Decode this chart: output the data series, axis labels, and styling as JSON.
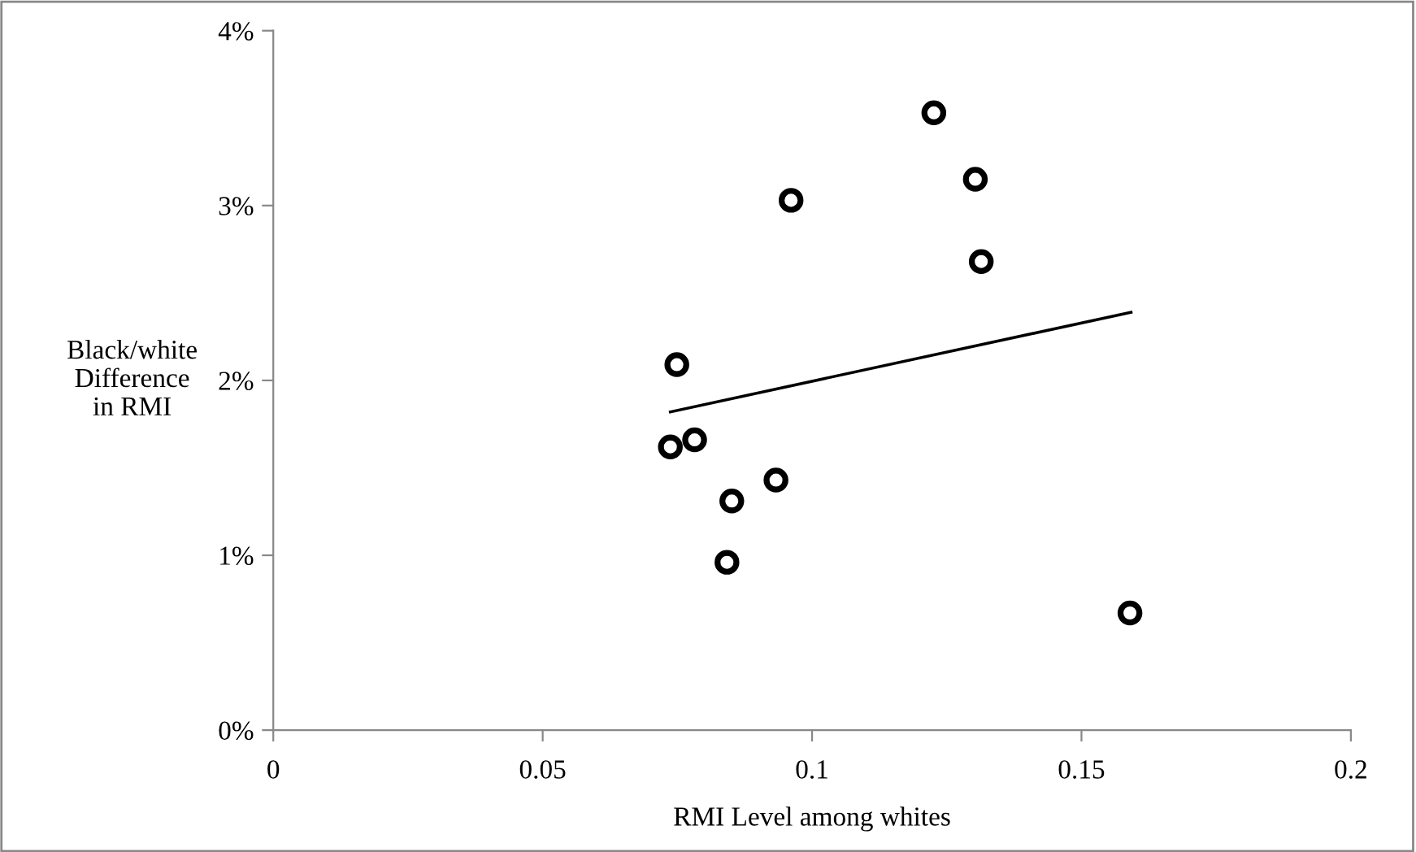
{
  "chart_data": {
    "type": "scatter",
    "xlabel": "RMI Level among whites",
    "ylabel": "Black/white\nDifference\nin RMI",
    "xlim": [
      0,
      0.2
    ],
    "xticks": [
      0,
      0.05,
      0.1,
      0.15,
      0.2
    ],
    "ylim": [
      0,
      4
    ],
    "yticks": [
      {
        "value": 0,
        "label": "0%"
      },
      {
        "value": 1,
        "label": "1%"
      },
      {
        "value": 2,
        "label": "2%"
      },
      {
        "value": 3,
        "label": "3%"
      },
      {
        "value": 4,
        "label": "4%"
      }
    ],
    "grid": false,
    "legend": false,
    "series": [
      {
        "color": "#000000",
        "marker": "circle",
        "x": [
          0.1226,
          0.1303,
          0.0961,
          0.1314,
          0.0749,
          0.0737,
          0.0782,
          0.0933,
          0.0851,
          0.0842,
          0.159
        ],
        "values": [
          3.53,
          3.15,
          3.03,
          2.68,
          2.09,
          1.62,
          1.66,
          1.43,
          1.31,
          0.96,
          0.67
        ]
      },
      {
        "type": "line",
        "marker": "none",
        "color": "#000000",
        "x": [
          0.0737,
          0.1592
        ],
        "values": [
          1.82,
          2.39
        ]
      }
    ]
  }
}
